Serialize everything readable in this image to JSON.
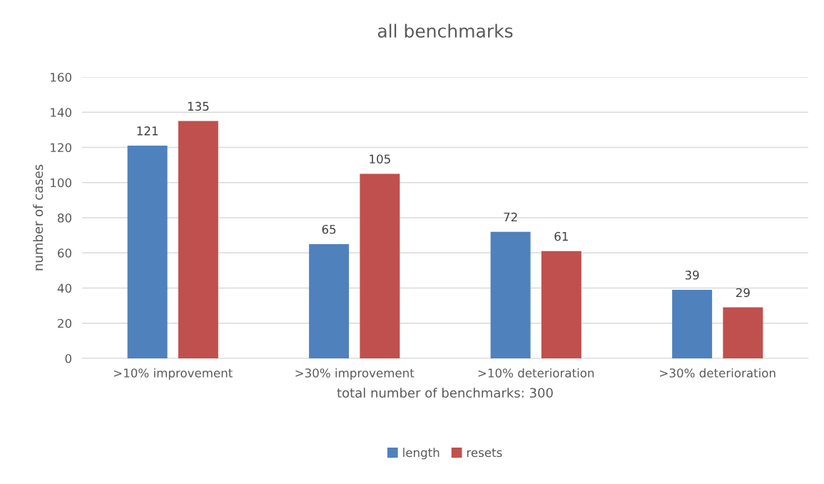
{
  "chart_data": {
    "type": "bar",
    "title": "all benchmarks",
    "xlabel": "total number of benchmarks: 300",
    "ylabel": "number of cases",
    "categories": [
      ">10% improvement",
      ">30% improvement",
      ">10% deterioration",
      ">30% deterioration"
    ],
    "series": [
      {
        "name": "length",
        "color": "#4f81bd",
        "values": [
          121,
          65,
          72,
          39
        ]
      },
      {
        "name": "resets",
        "color": "#c0504d",
        "values": [
          135,
          105,
          61,
          29
        ]
      }
    ],
    "ylim": [
      0,
      160
    ],
    "yticks": [
      0,
      20,
      40,
      60,
      80,
      100,
      120,
      140,
      160
    ],
    "grid": "y",
    "legend": "bottom",
    "data_labels": true
  }
}
